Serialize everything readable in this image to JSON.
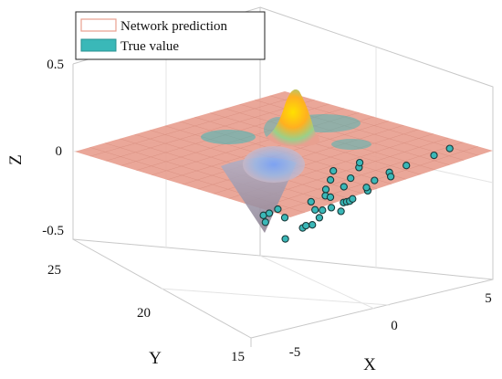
{
  "chart_data": {
    "type": "surface3d",
    "title": "",
    "xlabel": "X",
    "ylabel": "Y",
    "zlabel": "Z",
    "xlim": [
      -7.5,
      7.5
    ],
    "ylim": [
      15,
      25
    ],
    "zlim": [
      -0.5,
      0.5
    ],
    "x_ticks": [
      "-5",
      "0",
      "5"
    ],
    "y_ticks": [
      "15",
      "20",
      "25"
    ],
    "z_ticks": [
      "-0.5",
      "0",
      "0.5"
    ],
    "grid": true,
    "legend_position": "top-left",
    "series": [
      {
        "name": "Network prediction",
        "kind": "surface",
        "color": "#e8a090",
        "features": [
          {
            "kind": "peak",
            "x": 1,
            "y": 22,
            "z": 0.45
          },
          {
            "kind": "trough",
            "x": -2,
            "y": 20,
            "z": -0.5
          }
        ]
      },
      {
        "name": "True value",
        "kind": "scatter",
        "color": "#3ab8b8",
        "edge_color": "#1a3a3a",
        "points": [
          {
            "x": -3.4,
            "y": 19.8,
            "z": -0.58
          },
          {
            "x": -3.1,
            "y": 19.6,
            "z": -0.6
          },
          {
            "x": -2.6,
            "y": 19.7,
            "z": -0.62
          },
          {
            "x": -2.2,
            "y": 19.9,
            "z": -0.64
          },
          {
            "x": -1.6,
            "y": 20.0,
            "z": -0.63
          },
          {
            "x": -1.3,
            "y": 19.8,
            "z": -0.61
          },
          {
            "x": -0.7,
            "y": 20.2,
            "z": -0.62
          },
          {
            "x": -0.3,
            "y": 20.4,
            "z": -0.6
          },
          {
            "x": 0.1,
            "y": 20.6,
            "z": -0.58
          },
          {
            "x": 0.6,
            "y": 20.9,
            "z": -0.56
          },
          {
            "x": 1.2,
            "y": 20.7,
            "z": -0.6
          },
          {
            "x": 1.8,
            "y": 20.9,
            "z": -0.63
          },
          {
            "x": 2.5,
            "y": 20.8,
            "z": -0.66
          },
          {
            "x": 3.2,
            "y": 20.6,
            "z": -0.69
          },
          {
            "x": 4.6,
            "y": 20.5,
            "z": -0.71
          },
          {
            "x": 5.0,
            "y": 20.1,
            "z": -0.76
          },
          {
            "x": -4.4,
            "y": 20.8,
            "z": -0.63
          },
          {
            "x": -3.6,
            "y": 21.4,
            "z": -0.53
          },
          {
            "x": -2.7,
            "y": 22.0,
            "z": -0.52
          },
          {
            "x": -2.0,
            "y": 22.2,
            "z": -0.51
          },
          {
            "x": 0.4,
            "y": 22.0,
            "z": -0.56
          },
          {
            "x": 1.0,
            "y": 22.3,
            "z": -0.58
          },
          {
            "x": 1.5,
            "y": 22.6,
            "z": -0.6
          },
          {
            "x": -1.1,
            "y": 21.4,
            "z": -0.57
          },
          {
            "x": -0.2,
            "y": 21.5,
            "z": -0.57
          },
          {
            "x": 0.7,
            "y": 21.4,
            "z": -0.6
          },
          {
            "x": 1.3,
            "y": 21.6,
            "z": -0.62
          },
          {
            "x": 2.1,
            "y": 21.9,
            "z": -0.64
          },
          {
            "x": 2.6,
            "y": 22.3,
            "z": -0.63
          },
          {
            "x": -1.8,
            "y": 20.6,
            "z": -0.59
          },
          {
            "x": -0.5,
            "y": 21.0,
            "z": -0.6
          },
          {
            "x": 0.9,
            "y": 20.5,
            "z": -0.64
          },
          {
            "x": -3.0,
            "y": 21.0,
            "z": -0.56
          },
          {
            "x": 2.0,
            "y": 20.3,
            "z": -0.68
          },
          {
            "x": -5.5,
            "y": 18.8,
            "z": -0.64
          },
          {
            "x": -4.6,
            "y": 18.6,
            "z": -0.7
          }
        ]
      }
    ]
  },
  "colors": {
    "box_line": "#c8c8c8",
    "grid_line": "#e4e4e4",
    "surface_base": "#e8a090",
    "surface_mesh": "#c87868",
    "scatter_fill": "#3ab8b8",
    "scatter_edge": "#1a3a3a"
  }
}
